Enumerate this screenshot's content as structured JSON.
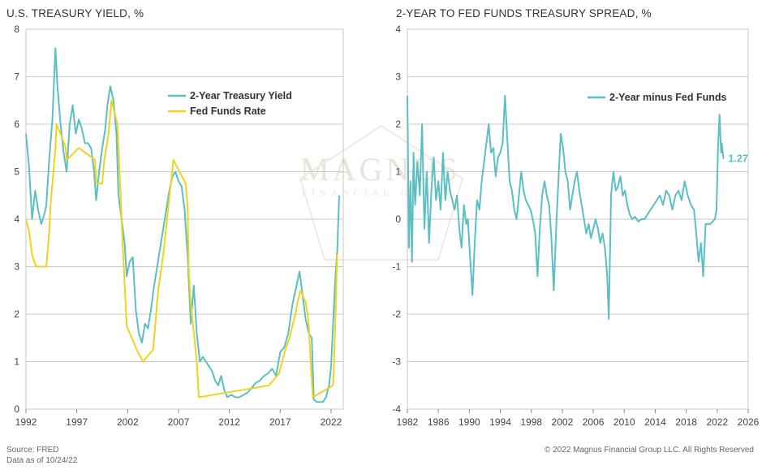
{
  "charts": {
    "left_title": "U.S. TREASURY YIELD, %",
    "right_title": "2-YEAR TO FED FUNDS TREASURY SPREAD, %"
  },
  "footer": {
    "source": "Source: FRED",
    "data_as_of": "Data as of 10/24/22",
    "copyright": "© 2022 Magnus Financial Group LLC. All Rights Reserved"
  },
  "watermark": {
    "text": "MAGNUS",
    "subtext": "FINANCIAL GROUP"
  },
  "colors": {
    "teal": "#5bbfc4",
    "yellow": "#f2d21c",
    "grid": "#c8c8c8",
    "axis": "#888888"
  },
  "chart_data": [
    {
      "type": "line",
      "title": "U.S. TREASURY YIELD, %",
      "xlabel": "",
      "ylabel": "",
      "xlim": [
        1992,
        2023.2
      ],
      "ylim": [
        0,
        8
      ],
      "x_ticks": [
        "1992",
        "1997",
        "2002",
        "2007",
        "2012",
        "2017",
        "2022"
      ],
      "y_ticks": [
        "0",
        "1",
        "2",
        "3",
        "4",
        "5",
        "6",
        "7",
        "8"
      ],
      "legend_position": "top-right",
      "series": [
        {
          "name": "2-Year Treasury Yield",
          "color": "#5bbfc4",
          "x": [
            1992.0,
            1992.3,
            1992.6,
            1992.9,
            1993.2,
            1993.5,
            1993.8,
            1994.0,
            1994.3,
            1994.6,
            1994.9,
            1995.1,
            1995.4,
            1995.7,
            1996.0,
            1996.3,
            1996.6,
            1996.9,
            1997.2,
            1997.5,
            1997.8,
            1998.1,
            1998.4,
            1998.7,
            1998.9,
            1999.2,
            1999.5,
            1999.8,
            2000.0,
            2000.3,
            2000.6,
            2000.9,
            2001.1,
            2001.4,
            2001.7,
            2001.9,
            2002.2,
            2002.5,
            2002.8,
            2003.1,
            2003.4,
            2003.7,
            2004.0,
            2004.3,
            2004.6,
            2004.9,
            2005.2,
            2005.5,
            2005.8,
            2006.1,
            2006.4,
            2006.7,
            2007.0,
            2007.3,
            2007.6,
            2007.9,
            2008.2,
            2008.5,
            2008.8,
            2009.1,
            2009.4,
            2009.7,
            2010.0,
            2010.3,
            2010.6,
            2010.9,
            2011.2,
            2011.5,
            2011.8,
            2012.2,
            2012.6,
            2013.0,
            2013.4,
            2013.8,
            2014.2,
            2014.6,
            2015.0,
            2015.4,
            2015.8,
            2016.2,
            2016.6,
            2017.0,
            2017.4,
            2017.8,
            2018.2,
            2018.6,
            2018.9,
            2019.2,
            2019.5,
            2019.8,
            2020.1,
            2020.3,
            2020.6,
            2020.9,
            2021.2,
            2021.5,
            2021.8,
            2022.0,
            2022.2,
            2022.4,
            2022.6,
            2022.8
          ],
          "values": [
            5.8,
            5.1,
            4.0,
            4.6,
            4.2,
            3.9,
            4.1,
            4.3,
            5.3,
            6.1,
            7.6,
            6.8,
            6.0,
            5.4,
            5.0,
            6.0,
            6.4,
            5.8,
            6.1,
            5.9,
            5.6,
            5.6,
            5.5,
            5.0,
            4.4,
            5.0,
            5.5,
            5.9,
            6.4,
            6.8,
            6.5,
            5.8,
            4.5,
            4.0,
            3.5,
            2.8,
            3.1,
            3.2,
            2.1,
            1.6,
            1.4,
            1.8,
            1.7,
            2.1,
            2.6,
            3.0,
            3.4,
            3.8,
            4.2,
            4.6,
            4.9,
            5.0,
            4.8,
            4.7,
            4.2,
            3.2,
            1.8,
            2.6,
            1.6,
            1.0,
            1.1,
            1.0,
            0.9,
            0.8,
            0.6,
            0.5,
            0.7,
            0.4,
            0.25,
            0.3,
            0.25,
            0.25,
            0.3,
            0.35,
            0.45,
            0.55,
            0.6,
            0.7,
            0.75,
            0.85,
            0.7,
            1.2,
            1.3,
            1.6,
            2.2,
            2.6,
            2.9,
            2.4,
            1.9,
            1.6,
            1.5,
            0.2,
            0.15,
            0.15,
            0.15,
            0.25,
            0.5,
            0.9,
            1.8,
            2.7,
            3.3,
            4.5
          ]
        },
        {
          "name": "Fed Funds Rate",
          "color": "#f2d21c",
          "x": [
            1992.0,
            1992.3,
            1992.6,
            1993.0,
            1993.4,
            1994.0,
            1994.1,
            1994.3,
            1994.4,
            1994.6,
            1994.9,
            1995.0,
            1995.5,
            1995.9,
            1996.0,
            1997.2,
            1998.8,
            1998.9,
            1999.5,
            1999.7,
            1999.9,
            2000.1,
            2000.2,
            2000.4,
            2001.0,
            2001.2,
            2001.5,
            2001.9,
            2002.9,
            2003.5,
            2004.5,
            2004.7,
            2005.0,
            2005.5,
            2006.0,
            2006.5,
            2007.7,
            2007.9,
            2008.0,
            2008.2,
            2008.8,
            2009.0,
            2015.9,
            2016.9,
            2017.2,
            2017.5,
            2017.9,
            2018.2,
            2018.5,
            2018.7,
            2019.0,
            2019.5,
            2019.7,
            2019.8,
            2020.2,
            2022.2,
            2022.3,
            2022.4,
            2022.5,
            2022.6,
            2022.7
          ],
          "values": [
            4.0,
            3.75,
            3.25,
            3.0,
            3.0,
            3.0,
            3.25,
            3.75,
            4.25,
            4.75,
            5.5,
            6.0,
            5.75,
            5.5,
            5.25,
            5.5,
            5.25,
            4.75,
            4.75,
            5.25,
            5.5,
            5.75,
            6.0,
            6.5,
            6.0,
            5.0,
            3.5,
            1.75,
            1.25,
            1.0,
            1.25,
            1.75,
            2.5,
            3.25,
            4.25,
            5.25,
            4.75,
            4.25,
            3.0,
            2.25,
            1.0,
            0.25,
            0.5,
            0.75,
            1.0,
            1.25,
            1.5,
            1.75,
            2.0,
            2.25,
            2.5,
            2.25,
            2.0,
            1.75,
            0.25,
            0.5,
            1.0,
            1.75,
            2.5,
            3.25,
            3.25
          ]
        }
      ]
    },
    {
      "type": "line",
      "title": "2-YEAR TO FED FUNDS TREASURY SPREAD, %",
      "xlabel": "",
      "ylabel": "",
      "xlim": [
        1982,
        2026
      ],
      "ylim": [
        -4,
        4
      ],
      "x_ticks": [
        "1982",
        "1986",
        "1990",
        "1994",
        "1998",
        "2002",
        "2006",
        "2010",
        "2014",
        "2018",
        "2022",
        "2026"
      ],
      "y_ticks": [
        "-4",
        "-3",
        "-2",
        "-1",
        "0",
        "1",
        "2",
        "3",
        "4"
      ],
      "legend_position": "top-right",
      "annotations": [
        {
          "text": "1.27",
          "x": 2022.8,
          "y": 1.27
        }
      ],
      "series": [
        {
          "name": "2-Year minus Fed Funds",
          "color": "#5bbfc4",
          "x": [
            1982.0,
            1982.2,
            1982.4,
            1982.6,
            1982.8,
            1983.0,
            1983.3,
            1983.6,
            1983.9,
            1984.2,
            1984.5,
            1984.8,
            1985.1,
            1985.4,
            1985.7,
            1986.0,
            1986.3,
            1986.6,
            1986.9,
            1987.2,
            1987.5,
            1987.8,
            1988.1,
            1988.4,
            1988.7,
            1989.0,
            1989.3,
            1989.6,
            1989.8,
            1990.1,
            1990.4,
            1990.7,
            1991.0,
            1991.3,
            1991.6,
            1991.9,
            1992.2,
            1992.5,
            1992.8,
            1993.1,
            1993.4,
            1993.7,
            1994.0,
            1994.3,
            1994.6,
            1994.9,
            1995.2,
            1995.5,
            1995.8,
            1996.1,
            1996.4,
            1996.7,
            1997.0,
            1997.3,
            1997.6,
            1997.9,
            1998.2,
            1998.5,
            1998.8,
            1999.1,
            1999.4,
            1999.7,
            2000.0,
            2000.3,
            2000.6,
            2000.9,
            2001.2,
            2001.5,
            2001.8,
            2002.1,
            2002.4,
            2002.7,
            2003.0,
            2003.3,
            2003.6,
            2003.9,
            2004.2,
            2004.5,
            2004.8,
            2005.1,
            2005.4,
            2005.7,
            2006.0,
            2006.3,
            2006.6,
            2006.9,
            2007.2,
            2007.5,
            2007.8,
            2008.0,
            2008.3,
            2008.6,
            2008.9,
            2009.2,
            2009.5,
            2009.8,
            2010.1,
            2010.4,
            2010.7,
            2011.0,
            2011.4,
            2011.8,
            2012.2,
            2012.6,
            2013.0,
            2013.4,
            2013.8,
            2014.2,
            2014.6,
            2015.0,
            2015.4,
            2015.8,
            2016.2,
            2016.6,
            2017.0,
            2017.4,
            2017.8,
            2018.2,
            2018.6,
            2019.0,
            2019.3,
            2019.6,
            2019.9,
            2020.2,
            2020.5,
            2020.8,
            2021.1,
            2021.4,
            2021.7,
            2021.9,
            2022.1,
            2022.3,
            2022.5,
            2022.6,
            2022.8
          ],
          "values": [
            2.6,
            -0.6,
            0.8,
            -0.9,
            1.4,
            0.3,
            1.2,
            0.5,
            2.0,
            -0.2,
            1.0,
            -0.5,
            0.6,
            1.3,
            0.4,
            0.8,
            0.2,
            1.4,
            0.4,
            1.0,
            0.6,
            0.4,
            0.2,
            0.5,
            -0.2,
            -0.6,
            0.3,
            -0.1,
            0.0,
            -0.8,
            -1.6,
            -0.5,
            0.4,
            0.2,
            0.8,
            1.2,
            1.6,
            2.0,
            1.4,
            1.5,
            0.9,
            1.3,
            1.4,
            1.6,
            2.6,
            1.7,
            0.8,
            0.6,
            0.2,
            0.0,
            0.5,
            1.0,
            0.6,
            0.4,
            0.3,
            0.2,
            0.0,
            -0.3,
            -1.2,
            -0.2,
            0.5,
            0.8,
            0.5,
            0.3,
            -0.4,
            -1.5,
            -0.2,
            0.8,
            1.8,
            1.5,
            1.0,
            0.8,
            0.2,
            0.5,
            0.8,
            1.0,
            0.6,
            0.3,
            0.0,
            -0.3,
            -0.1,
            -0.4,
            -0.2,
            0.0,
            -0.2,
            -0.5,
            -0.3,
            -0.6,
            -1.2,
            -2.1,
            0.5,
            1.0,
            0.6,
            0.7,
            0.9,
            0.5,
            0.6,
            0.3,
            0.1,
            0.0,
            0.05,
            -0.05,
            0.0,
            0.0,
            0.1,
            0.2,
            0.3,
            0.4,
            0.5,
            0.3,
            0.6,
            0.5,
            0.2,
            0.5,
            0.6,
            0.4,
            0.8,
            0.5,
            0.3,
            0.2,
            -0.3,
            -0.9,
            -0.5,
            -1.2,
            -0.1,
            -0.1,
            -0.1,
            -0.05,
            0.0,
            0.2,
            1.5,
            2.2,
            1.4,
            1.6,
            1.27
          ]
        }
      ]
    }
  ]
}
